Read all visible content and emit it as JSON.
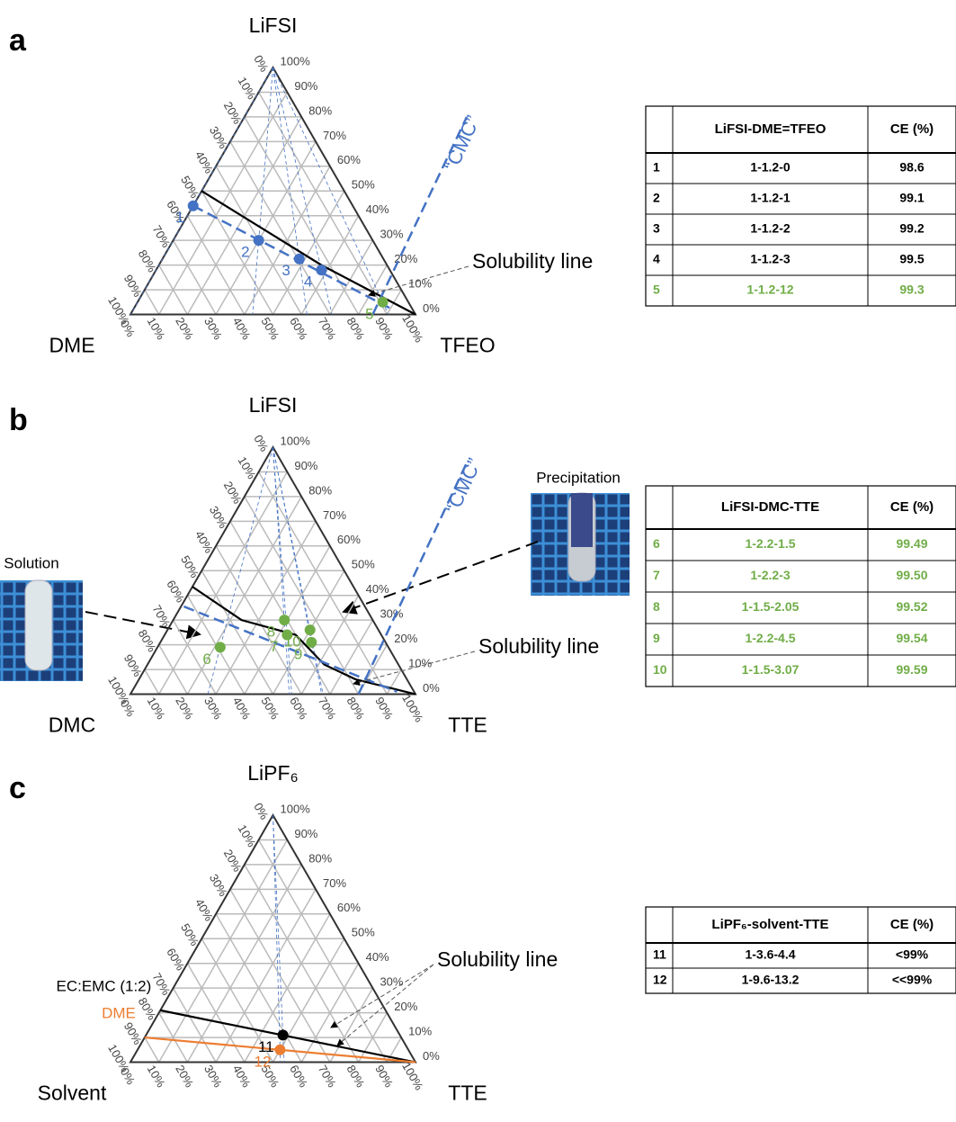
{
  "axis_ticks": [
    "0%",
    "10%",
    "20%",
    "30%",
    "40%",
    "50%",
    "60%",
    "70%",
    "80%",
    "90%",
    "100%"
  ],
  "panels": [
    {
      "letter": "a",
      "top": "LiFSI",
      "left": "DME",
      "right": "TFEO",
      "annotation": "Solubility line",
      "cmc_label": "“CMC”",
      "points": [
        {
          "label": "1",
          "salt": 44,
          "diluent": 0,
          "color": "#4472c4"
        },
        {
          "label": "2",
          "salt": 30,
          "diluent": 30,
          "color": "#4472c4"
        },
        {
          "label": "3",
          "salt": 22.5,
          "diluent": 48,
          "color": "#4472c4"
        },
        {
          "label": "4",
          "salt": 18,
          "diluent": 58,
          "color": "#4472c4"
        },
        {
          "label": "5",
          "salt": 5,
          "diluent": 86,
          "color": "#70ad47"
        }
      ],
      "lines": [
        {
          "color": "#000000",
          "dashed": false,
          "points": [
            [
              50,
              0
            ],
            [
              20,
              57
            ],
            [
              0,
              100
            ]
          ]
        },
        {
          "color": "#4472c4",
          "dashed": true,
          "points": [
            [
              44,
              0
            ],
            [
              2,
              91
            ]
          ]
        },
        {
          "color": "#4472c4",
          "dashed": true,
          "points": [
            [
              0,
              85
            ],
            [
              80,
              78
            ]
          ]
        }
      ],
      "table": {
        "header": [
          "LiFSI-DME=TFEO",
          "CE (%)"
        ],
        "rows": [
          [
            "1",
            "1-1.2-0",
            "98.6"
          ],
          [
            "2",
            "1-1.2-1",
            "99.1"
          ],
          [
            "3",
            "1-1.2-2",
            "99.2"
          ],
          [
            "4",
            "1-1.2-3",
            "99.5"
          ],
          [
            "5",
            "1-1.2-12",
            "99.3"
          ]
        ],
        "row_colors": [
          "#000000",
          "#000000",
          "#000000",
          "#000000",
          "#70ad47"
        ]
      }
    },
    {
      "letter": "b",
      "top": "LiFSI",
      "left": "DMC",
      "right": "TTE",
      "annotation": "Solubility line",
      "cmc_label": "“CMC”",
      "photo_labels": [
        "Solution",
        "Precipitation"
      ],
      "points": [
        {
          "label": "6",
          "salt": 19,
          "diluent": 22,
          "color": "#70ad47"
        },
        {
          "label": "7",
          "salt": 24,
          "diluent": 43,
          "color": "#70ad47"
        },
        {
          "label": "8",
          "salt": 30,
          "diluent": 39,
          "color": "#70ad47"
        },
        {
          "label": "9",
          "salt": 21,
          "diluent": 53,
          "color": "#70ad47"
        },
        {
          "label": "10",
          "salt": 26,
          "diluent": 50,
          "color": "#70ad47"
        }
      ],
      "lines": [
        {
          "color": "#000000",
          "dashed": false,
          "points": [
            [
              43.5,
              0
            ],
            [
              30,
              24
            ],
            [
              24,
              46
            ],
            [
              12,
              62
            ],
            [
              6,
              76
            ],
            [
              0,
              100
            ]
          ]
        },
        {
          "color": "#4472c4",
          "dashed": true,
          "points": [
            [
              35.5,
              1
            ],
            [
              1,
              93
            ]
          ]
        },
        {
          "color": "#4472c4",
          "dashed": true,
          "points": [
            [
              0,
              80
            ],
            [
              95,
              71
            ]
          ]
        }
      ],
      "table": {
        "header": [
          "LiFSI-DMC-TTE",
          "CE (%)"
        ],
        "rows": [
          [
            "6",
            "1-2.2-1.5",
            "99.49"
          ],
          [
            "7",
            "1-2.2-3",
            "99.50"
          ],
          [
            "8",
            "1-1.5-2.05",
            "99.52"
          ],
          [
            "9",
            "1-2.2-4.5",
            "99.54"
          ],
          [
            "10",
            "1-1.5-3.07",
            "99.59"
          ]
        ],
        "row_colors": [
          "#70ad47",
          "#70ad47",
          "#70ad47",
          "#70ad47",
          "#70ad47"
        ]
      }
    },
    {
      "letter": "c",
      "top": "LiPF₆",
      "left": "Solvent",
      "right": "TTE",
      "annotation": "Solubility line",
      "points": [
        {
          "label": "11",
          "salt": 11,
          "diluent": 48,
          "color": "#000000"
        },
        {
          "label": "12",
          "salt": 5,
          "diluent": 50,
          "color": "#ed7d31"
        }
      ],
      "lines": [
        {
          "color": "#000000",
          "dashed": false,
          "label": "EC:EMC (1:2)",
          "points": [
            [
              21,
              0
            ],
            [
              0,
              100
            ]
          ]
        },
        {
          "color": "#ed7d31",
          "dashed": false,
          "label": "DME",
          "points": [
            [
              10,
              0
            ],
            [
              0,
              100
            ]
          ]
        }
      ],
      "table": {
        "header": [
          "LiPF₆-solvent-TTE",
          "CE (%)"
        ],
        "rows": [
          [
            "11",
            "1-3.6-4.4",
            "<99%"
          ],
          [
            "12",
            "1-9.6-13.2",
            "<<99%"
          ]
        ],
        "row_colors": [
          "#000000",
          "#000000"
        ]
      }
    }
  ]
}
